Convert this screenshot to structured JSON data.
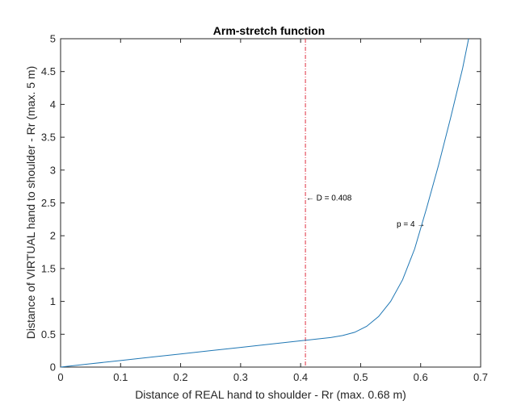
{
  "chart_data": {
    "type": "line",
    "title": "Arm-stretch function",
    "xlabel": "Distance of REAL hand to shoulder - Rr (max. 0.68 m)",
    "ylabel": "Distance of VIRTUAL hand to shoulder - Rr (max. 5 m)",
    "xlim": [
      0,
      0.7
    ],
    "ylim": [
      0,
      5
    ],
    "xticks": [
      0,
      0.1,
      0.2,
      0.3,
      0.4,
      0.5,
      0.6,
      0.7
    ],
    "xtick_labels": [
      "0",
      "0.1",
      "0.2",
      "0.3",
      "0.4",
      "0.5",
      "0.6",
      "0.7"
    ],
    "yticks": [
      0,
      0.5,
      1,
      1.5,
      2,
      2.5,
      3,
      3.5,
      4,
      4.5,
      5
    ],
    "ytick_labels": [
      "0",
      "0.5",
      "1",
      "1.5",
      "2",
      "2.5",
      "3",
      "3.5",
      "4",
      "4.5",
      "5"
    ],
    "grid": false,
    "series": [
      {
        "color": "#1f77b4",
        "x": [
          0,
          0.05,
          0.1,
          0.15,
          0.2,
          0.25,
          0.3,
          0.35,
          0.408,
          0.43,
          0.45,
          0.47,
          0.49,
          0.51,
          0.53,
          0.55,
          0.57,
          0.59,
          0.61,
          0.63,
          0.65,
          0.67,
          0.68
        ],
        "y": [
          0,
          0.05,
          0.1,
          0.15,
          0.2,
          0.25,
          0.3,
          0.35,
          0.408,
          0.43,
          0.45,
          0.48,
          0.53,
          0.62,
          0.77,
          1.0,
          1.33,
          1.8,
          2.42,
          3.08,
          3.8,
          4.55,
          5.0
        ]
      }
    ],
    "vline": {
      "x": 0.408,
      "color": "#e03040",
      "style": "dash-dot"
    },
    "annotations": [
      {
        "text": "← D = 0.408",
        "x": 0.409,
        "y": 2.58
      },
      {
        "text": "p =  4 →",
        "x": 0.56,
        "y": 2.18
      }
    ]
  }
}
